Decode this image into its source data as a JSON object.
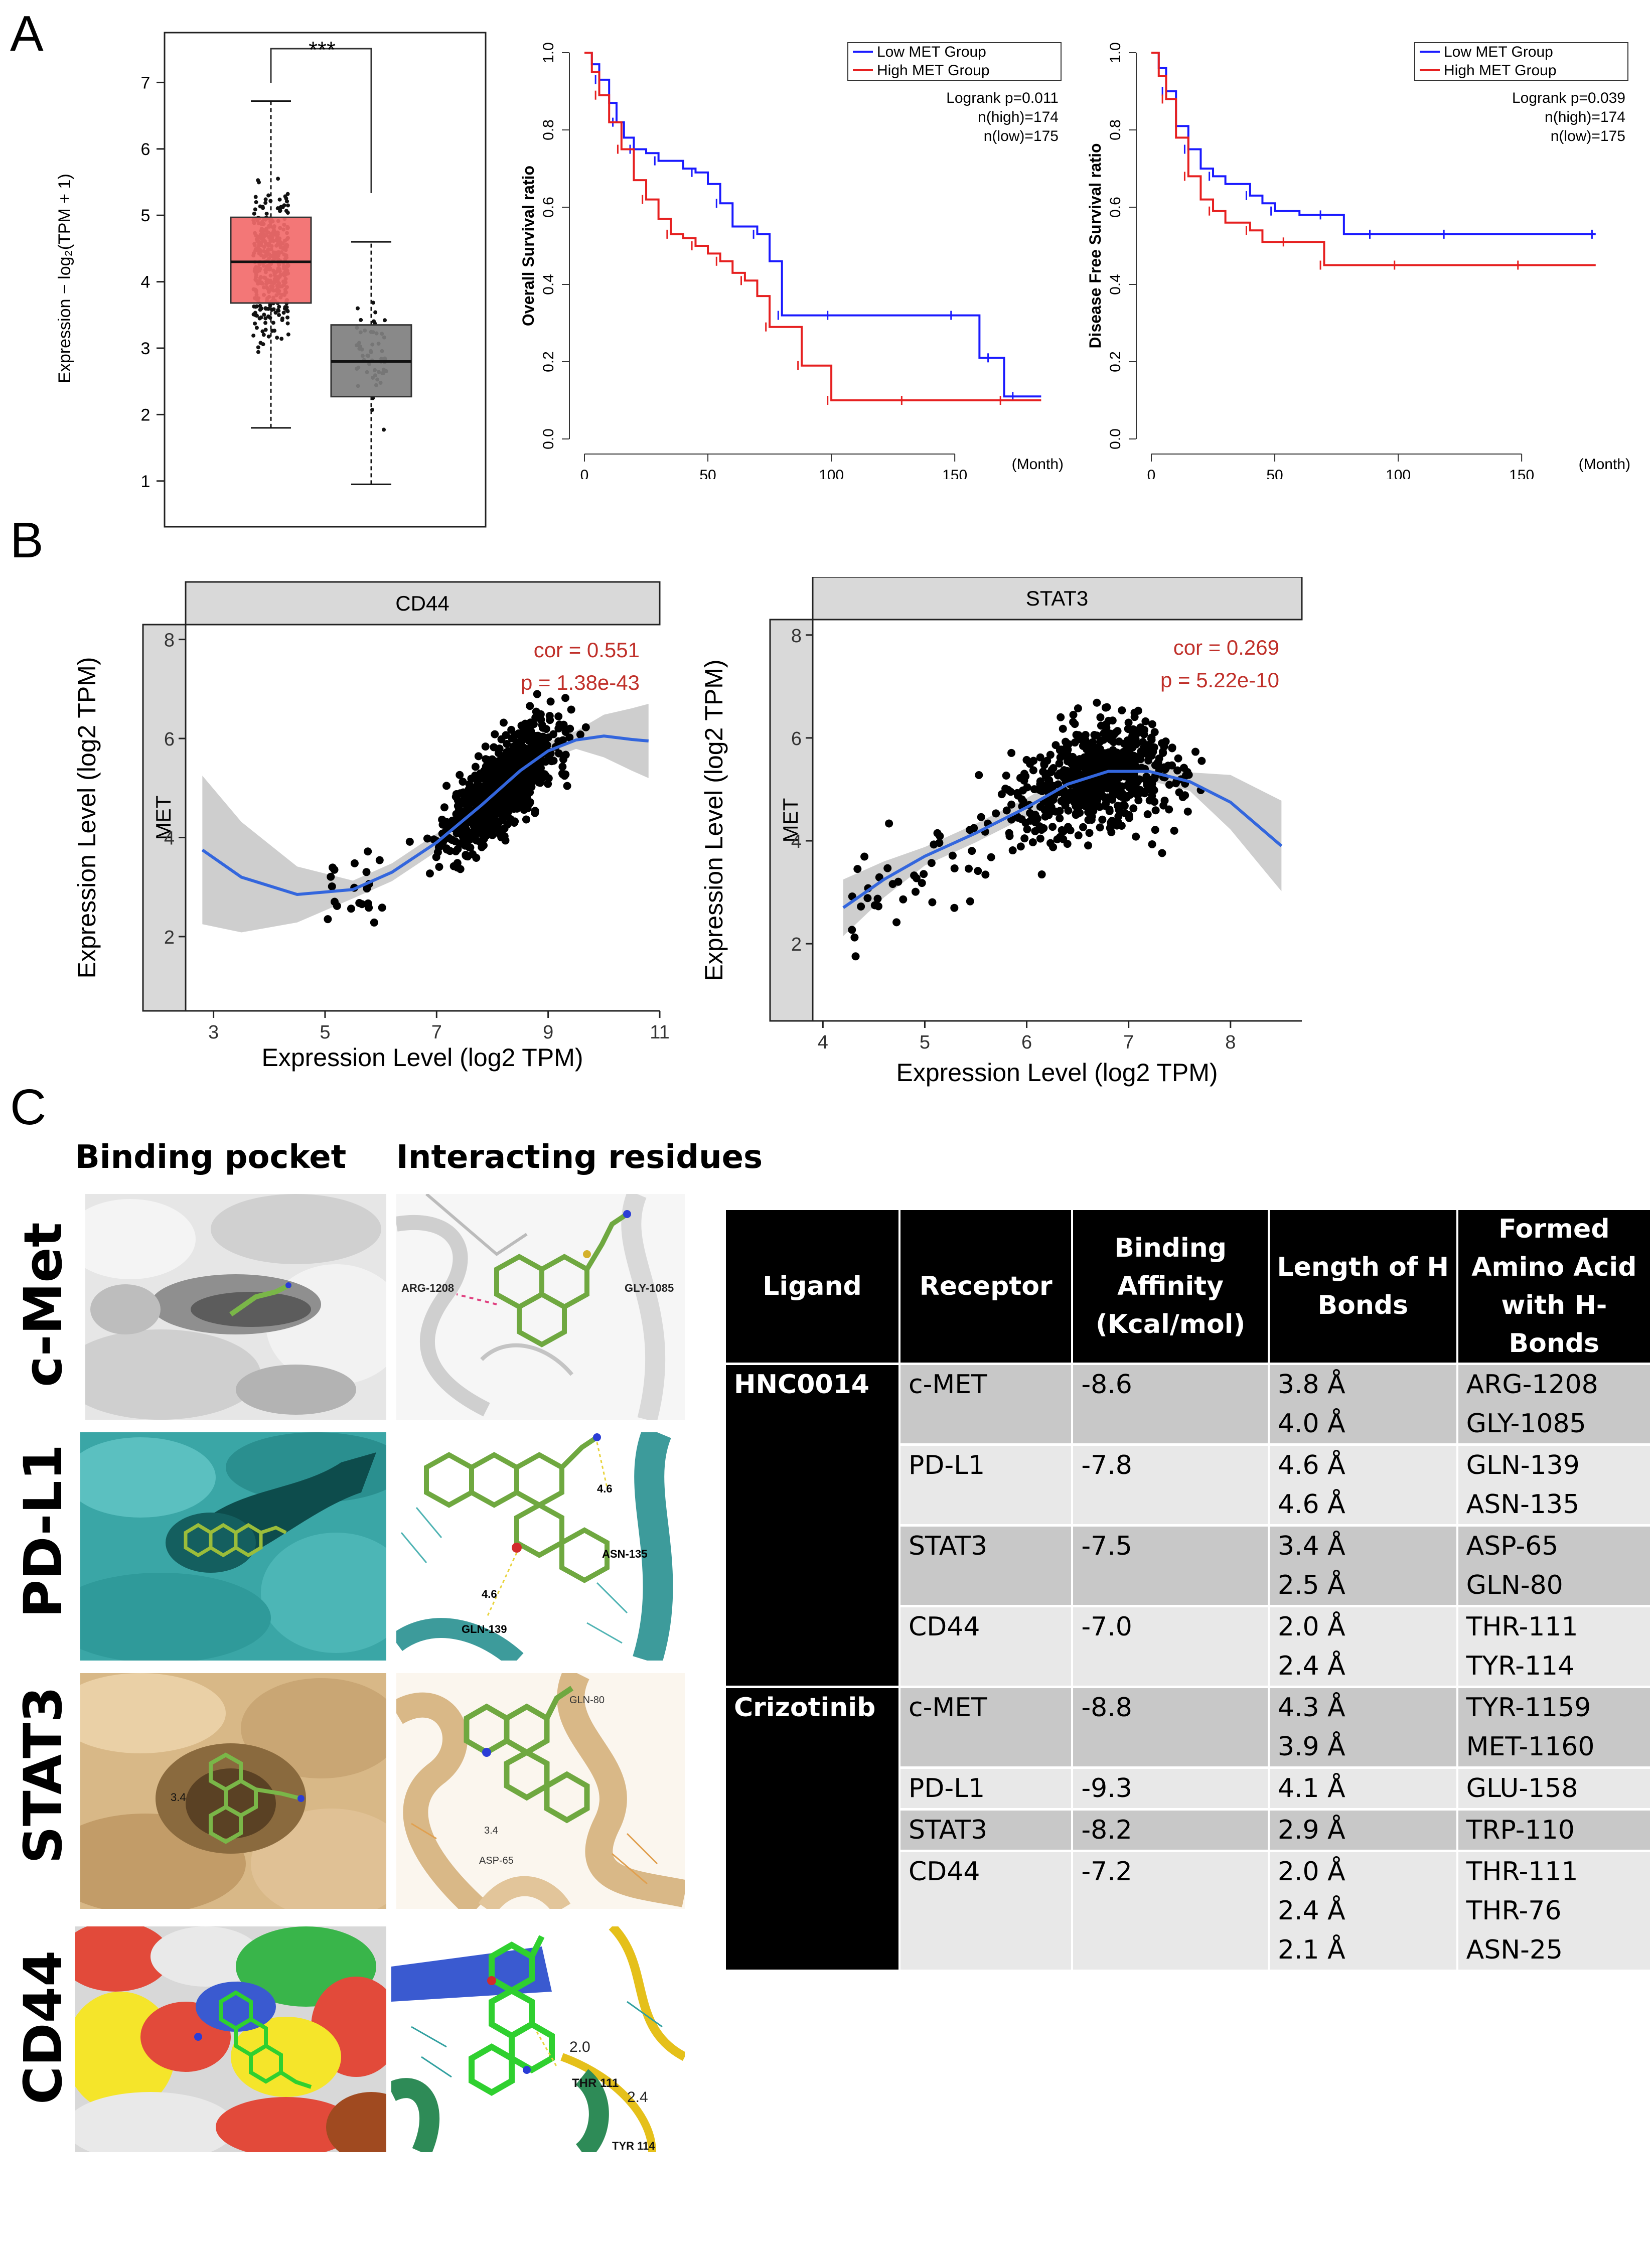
{
  "panels": {
    "a": "A",
    "b": "B",
    "c": "C"
  },
  "panel_a": {
    "boxplot": {
      "ylabel": "Expression − log₂(TPM + 1)",
      "significance": "***",
      "yticks": [
        "1",
        "2",
        "3",
        "4",
        "5",
        "6",
        "7"
      ],
      "colors": {
        "tumor": "#f26b6b",
        "normal": "#7f7f7f"
      }
    },
    "os": {
      "ylabel": "Overall Survival ratio",
      "legend": [
        "Low MET Group",
        "High MET Group"
      ],
      "stats": [
        "Logrank p=0.011",
        "n(high)=174",
        "n(low)=175"
      ],
      "xticks": [
        "0",
        "50",
        "100",
        "150"
      ],
      "xunit": "(Month)",
      "yticks": [
        "0.0",
        "0.2",
        "0.4",
        "0.6",
        "0.8",
        "1.0"
      ]
    },
    "dfs": {
      "ylabel": "Disease Free Survival ratio",
      "legend": [
        "Low MET Group",
        "High MET Group"
      ],
      "stats": [
        "Logrank p=0.039",
        "n(high)=174",
        "n(low)=175"
      ],
      "xticks": [
        "0",
        "50",
        "100",
        "150"
      ],
      "xunit": "(Month)",
      "yticks": [
        "0.0",
        "0.2",
        "0.4",
        "0.6",
        "0.8",
        "1.0"
      ]
    }
  },
  "panel_b": {
    "cd44": {
      "strip_top": "CD44",
      "strip_side": "MET",
      "cor": "cor = 0.551",
      "p": "p = 1.38e-43",
      "xlabel": "Expression Level (log2 TPM)",
      "ylabel": "Expression Level (log2 TPM)",
      "xticks": [
        "3",
        "5",
        "7",
        "9",
        "11"
      ],
      "yticks": [
        "2",
        "4",
        "6",
        "8"
      ]
    },
    "stat3": {
      "strip_top": "STAT3",
      "strip_side": "MET",
      "cor": "cor = 0.269",
      "p": "p = 5.22e-10",
      "xlabel": "Expression Level (log2 TPM)",
      "ylabel": "Expression Level (log2 TPM)",
      "xticks": [
        "4",
        "5",
        "6",
        "7",
        "8"
      ],
      "yticks": [
        "2",
        "4",
        "6",
        "8"
      ]
    }
  },
  "panel_c": {
    "col_headers": [
      "Binding pocket",
      "Interacting residues"
    ],
    "rows": [
      "c-Met",
      "PD-L1",
      "STAT3",
      "CD44"
    ],
    "labels": {
      "cmet": [
        "ARG-1208",
        "GLY-1085"
      ],
      "pdl1": [
        "4.6",
        "ASN-135",
        "4.6",
        "GLN-139"
      ],
      "stat3_pocket": "3.4",
      "stat3": [
        "GLN-80",
        "3.4",
        "ASP-65"
      ],
      "cd44": [
        "2.0",
        "THR 111",
        "2.4",
        "TYR 114"
      ]
    },
    "table": {
      "headers": [
        "Ligand",
        "Receptor",
        "Binding Affinity (Kcal/mol)",
        "Length of H Bonds",
        "Formed Amino Acid with H-Bonds"
      ],
      "ligands": [
        "HNC0014",
        "Crizotinib"
      ],
      "rows": [
        {
          "receptor": "c-MET",
          "affinity": "-8.6",
          "bonds": [
            "3.8 Å",
            "4.0 Å"
          ],
          "residues": [
            "ARG-1208",
            "GLY-1085"
          ]
        },
        {
          "receptor": "PD-L1",
          "affinity": "-7.8",
          "bonds": [
            "4.6 Å",
            "4.6 Å"
          ],
          "residues": [
            "GLN-139",
            "ASN-135"
          ]
        },
        {
          "receptor": "STAT3",
          "affinity": "-7.5",
          "bonds": [
            "3.4 Å",
            "2.5 Å"
          ],
          "residues": [
            "ASP-65",
            "GLN-80"
          ]
        },
        {
          "receptor": "CD44",
          "affinity": "-7.0",
          "bonds": [
            "2.0 Å",
            "2.4 Å"
          ],
          "residues": [
            "THR-111",
            "TYR-114"
          ]
        },
        {
          "receptor": "c-MET",
          "affinity": "-8.8",
          "bonds": [
            "4.3 Å",
            "3.9 Å"
          ],
          "residues": [
            "TYR-1159",
            "MET-1160"
          ]
        },
        {
          "receptor": "PD-L1",
          "affinity": "-9.3",
          "bonds": [
            "4.1 Å"
          ],
          "residues": [
            "GLU-158"
          ]
        },
        {
          "receptor": "STAT3",
          "affinity": "-8.2",
          "bonds": [
            "2.9 Å"
          ],
          "residues": [
            "TRP-110"
          ]
        },
        {
          "receptor": "CD44",
          "affinity": "-7.2",
          "bonds": [
            "2.0 Å",
            "2.4 Å",
            "2.1 Å"
          ],
          "residues": [
            "THR-111",
            "THR-76",
            "ASN-25"
          ]
        }
      ]
    }
  },
  "chart_data": [
    {
      "type": "box",
      "ylabel": "Expression − log₂(TPM + 1)",
      "ylim": [
        0.5,
        7.6
      ],
      "series": [
        {
          "color": "#f26b6b",
          "whisker_low": 1.8,
          "q1": 3.68,
          "median": 4.3,
          "q3": 4.97,
          "whisker_high": 6.72,
          "n_points": 420
        },
        {
          "color": "#7f7f7f",
          "whisker_low": 0.95,
          "q1": 2.27,
          "median": 2.8,
          "q3": 3.35,
          "whisker_high": 4.6,
          "n_points": 55
        }
      ],
      "annotation": "***"
    },
    {
      "type": "line",
      "ylabel": "Overall Survival ratio",
      "xlim": [
        0,
        190
      ],
      "ylim": [
        0,
        1.0
      ],
      "series": [
        {
          "name": "Low MET Group",
          "color": "#1a1aff",
          "x": [
            0,
            3,
            6,
            10,
            13,
            16,
            20,
            25,
            30,
            40,
            45,
            50,
            55,
            60,
            70,
            75,
            80,
            90,
            100,
            120,
            150,
            160,
            165,
            170,
            175,
            185
          ],
          "y": [
            1.0,
            0.97,
            0.93,
            0.87,
            0.82,
            0.78,
            0.75,
            0.74,
            0.72,
            0.7,
            0.69,
            0.66,
            0.61,
            0.55,
            0.53,
            0.46,
            0.32,
            0.32,
            0.32,
            0.32,
            0.32,
            0.21,
            0.21,
            0.11,
            0.11,
            0.11
          ]
        },
        {
          "name": "High MET Group",
          "color": "#e62020",
          "x": [
            0,
            3,
            6,
            10,
            15,
            20,
            25,
            30,
            35,
            40,
            45,
            50,
            55,
            60,
            65,
            70,
            75,
            80,
            88,
            95,
            100,
            110,
            130,
            150,
            170,
            185
          ],
          "y": [
            1.0,
            0.95,
            0.89,
            0.82,
            0.75,
            0.67,
            0.62,
            0.57,
            0.53,
            0.52,
            0.5,
            0.48,
            0.46,
            0.43,
            0.41,
            0.37,
            0.29,
            0.29,
            0.19,
            0.19,
            0.1,
            0.1,
            0.1,
            0.1,
            0.1,
            0.1
          ]
        }
      ]
    },
    {
      "type": "line",
      "ylabel": "Disease Free Survival ratio",
      "xlim": [
        0,
        190
      ],
      "ylim": [
        0,
        1.0
      ],
      "series": [
        {
          "name": "Low MET Group",
          "color": "#1a1aff",
          "x": [
            0,
            3,
            6,
            10,
            15,
            20,
            25,
            30,
            40,
            45,
            50,
            60,
            70,
            78,
            90,
            100,
            120,
            150,
            180
          ],
          "y": [
            1.0,
            0.96,
            0.9,
            0.81,
            0.75,
            0.7,
            0.68,
            0.66,
            0.63,
            0.61,
            0.59,
            0.58,
            0.58,
            0.53,
            0.53,
            0.53,
            0.53,
            0.53,
            0.53
          ]
        },
        {
          "name": "High MET Group",
          "color": "#e62020",
          "x": [
            0,
            3,
            6,
            10,
            15,
            20,
            25,
            30,
            40,
            45,
            55,
            65,
            70,
            80,
            100,
            120,
            150,
            180
          ],
          "y": [
            1.0,
            0.94,
            0.88,
            0.78,
            0.68,
            0.62,
            0.59,
            0.56,
            0.54,
            0.51,
            0.51,
            0.51,
            0.45,
            0.45,
            0.45,
            0.45,
            0.45,
            0.45
          ]
        }
      ]
    },
    {
      "type": "scatter",
      "facet": "CD44",
      "xlabel": "Expression Level (log2 TPM)",
      "ylabel": "Expression Level (log2 TPM)",
      "xlim": [
        2.5,
        11
      ],
      "ylim": [
        0.5,
        8.3
      ],
      "cor": 0.551,
      "p": "1.38e-43",
      "smooth": {
        "x": [
          2.8,
          3.5,
          4.5,
          5.5,
          6.2,
          7,
          7.8,
          8.5,
          9,
          9.5,
          10,
          10.5,
          10.8
        ],
        "y": [
          3.75,
          3.2,
          2.85,
          2.95,
          3.3,
          3.9,
          4.65,
          5.35,
          5.75,
          5.97,
          6.05,
          5.98,
          5.95
        ]
      },
      "n_points": 900
    },
    {
      "type": "scatter",
      "facet": "STAT3",
      "xlabel": "Expression Level (log2 TPM)",
      "ylabel": "Expression Level (log2 TPM)",
      "xlim": [
        3.9,
        8.7
      ],
      "ylim": [
        0.5,
        8.3
      ],
      "cor": 0.269,
      "p": "5.22e-10",
      "smooth": {
        "x": [
          4.2,
          4.6,
          5.0,
          5.5,
          6.0,
          6.4,
          6.8,
          7.2,
          7.6,
          8.0,
          8.5
        ],
        "y": [
          2.7,
          3.25,
          3.7,
          4.15,
          4.65,
          5.1,
          5.35,
          5.35,
          5.15,
          4.75,
          3.9
        ]
      },
      "n_points": 700
    }
  ]
}
